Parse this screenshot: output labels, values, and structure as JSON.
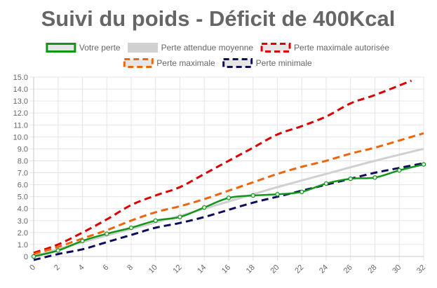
{
  "chart_data": {
    "type": "line",
    "title": "Suivi du poids - Déficit de 400Kcal",
    "xlabel": "",
    "ylabel": "",
    "xlim": [
      0,
      32
    ],
    "ylim": [
      0,
      15
    ],
    "x_ticks": [
      "0",
      "2",
      "4",
      "6",
      "8",
      "10",
      "12",
      "14",
      "16",
      "18",
      "20",
      "22",
      "24",
      "26",
      "28",
      "30",
      "32"
    ],
    "y_ticks": [
      "0",
      "1.0",
      "2.0",
      "3.0",
      "4.0",
      "5.0",
      "6.0",
      "7.0",
      "8.0",
      "9.0",
      "10.0",
      "11.0",
      "12.0",
      "13.0",
      "14.0",
      "15.0"
    ],
    "grid": true,
    "legend_position": "top",
    "series": [
      {
        "name": "Votre perte",
        "color": "#109618",
        "fill": "#e6e6e6",
        "dash": "solid",
        "markers": true,
        "points": [
          [
            0,
            0
          ],
          [
            2,
            0.5
          ],
          [
            4,
            1.3
          ],
          [
            6,
            1.9
          ],
          [
            8,
            2.4
          ],
          [
            10,
            3.0
          ],
          [
            12,
            3.3
          ],
          [
            14,
            4.1
          ],
          [
            16,
            4.9
          ],
          [
            18,
            5.1
          ],
          [
            20,
            5.2
          ],
          [
            22,
            5.4
          ],
          [
            24,
            6.1
          ],
          [
            26,
            6.5
          ],
          [
            28,
            6.6
          ],
          [
            30,
            7.2
          ],
          [
            32,
            7.7
          ]
        ]
      },
      {
        "name": "Perte attendue moyenne",
        "color": "#d0d0d0",
        "fill": "#d0d0d0",
        "dash": "solid",
        "markers": false,
        "points": [
          [
            0,
            0
          ],
          [
            4,
            1.2
          ],
          [
            8,
            2.3
          ],
          [
            12,
            3.4
          ],
          [
            16,
            4.6
          ],
          [
            20,
            5.8
          ],
          [
            24,
            6.9
          ],
          [
            28,
            8.0
          ],
          [
            32,
            9.0
          ]
        ]
      },
      {
        "name": "Perte maximale autorisée",
        "color": "#dc0000",
        "fill": "#e6e6e6",
        "dash": "dashed",
        "markers": false,
        "points": [
          [
            0,
            0.3
          ],
          [
            2,
            1.0
          ],
          [
            4,
            2.0
          ],
          [
            6,
            3.1
          ],
          [
            8,
            4.3
          ],
          [
            10,
            5.1
          ],
          [
            12,
            5.8
          ],
          [
            14,
            6.9
          ],
          [
            16,
            8.0
          ],
          [
            18,
            9.1
          ],
          [
            20,
            10.2
          ],
          [
            22,
            10.9
          ],
          [
            24,
            11.7
          ],
          [
            26,
            12.8
          ],
          [
            28,
            13.5
          ],
          [
            31,
            14.7
          ]
        ]
      },
      {
        "name": "Perte maximale",
        "color": "#f0650a",
        "fill": "#e6e6e6",
        "dash": "dashed",
        "markers": false,
        "points": [
          [
            0,
            0.2
          ],
          [
            2,
            0.8
          ],
          [
            4,
            1.5
          ],
          [
            6,
            2.2
          ],
          [
            8,
            3.0
          ],
          [
            10,
            3.7
          ],
          [
            12,
            4.2
          ],
          [
            14,
            4.8
          ],
          [
            16,
            5.5
          ],
          [
            18,
            6.2
          ],
          [
            20,
            6.9
          ],
          [
            22,
            7.5
          ],
          [
            24,
            8.0
          ],
          [
            26,
            8.6
          ],
          [
            28,
            9.1
          ],
          [
            30,
            9.7
          ],
          [
            32,
            10.3
          ]
        ]
      },
      {
        "name": "Perte minimale",
        "color": "#0d0d5c",
        "fill": "#e6e6e6",
        "dash": "dashed",
        "markers": false,
        "points": [
          [
            0,
            -0.3
          ],
          [
            2,
            0.2
          ],
          [
            4,
            0.6
          ],
          [
            6,
            1.2
          ],
          [
            8,
            1.8
          ],
          [
            10,
            2.4
          ],
          [
            12,
            2.8
          ],
          [
            14,
            3.3
          ],
          [
            16,
            3.9
          ],
          [
            18,
            4.5
          ],
          [
            20,
            5.0
          ],
          [
            22,
            5.5
          ],
          [
            24,
            6.0
          ],
          [
            26,
            6.5
          ],
          [
            28,
            7.0
          ],
          [
            30,
            7.4
          ],
          [
            32,
            7.8
          ]
        ]
      }
    ]
  }
}
